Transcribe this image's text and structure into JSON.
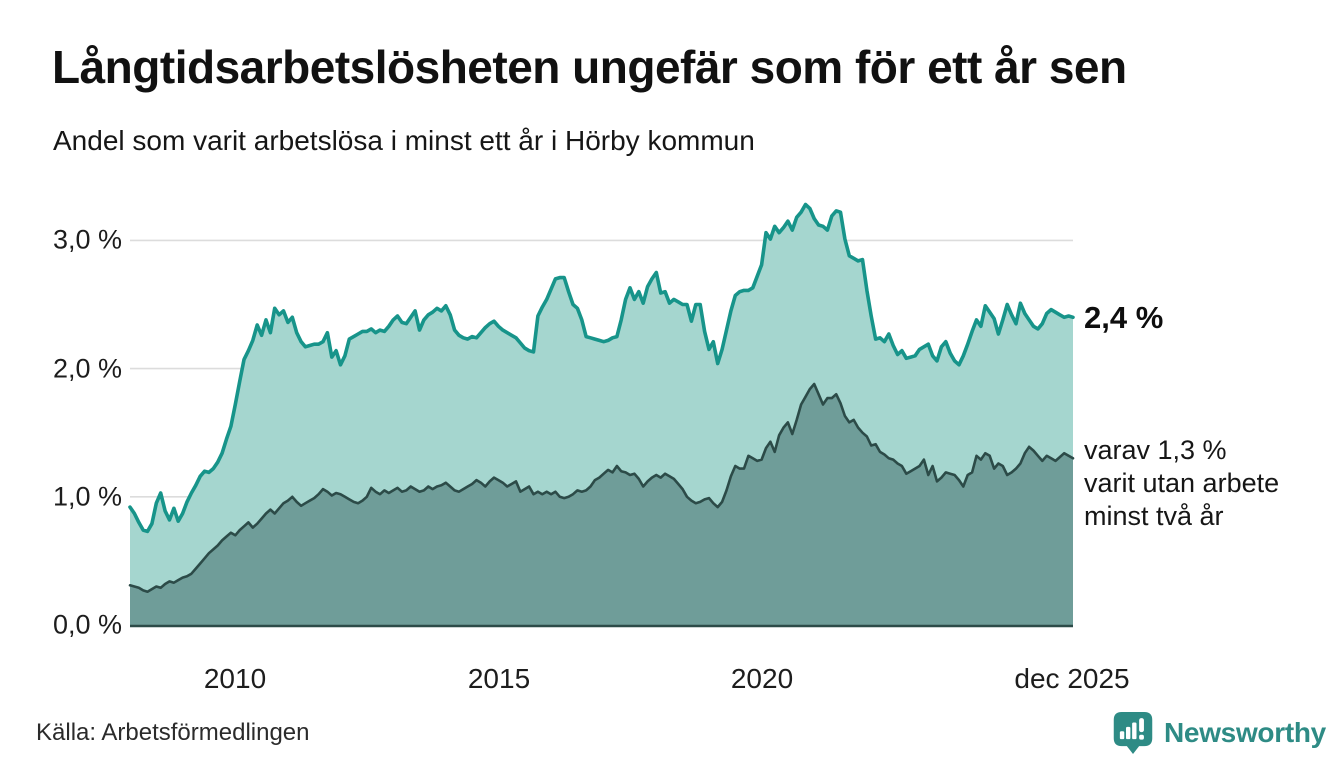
{
  "title": "Långtidsarbetslösheten ungefär som för ett år sen",
  "subtitle": "Andel som varit arbetslösa i minst ett år i Hörby kommun",
  "source": "Källa: Arbetsförmedlingen",
  "branding": {
    "name": "Newsworthy",
    "icon": "newsworthy-bubble-chart-icon",
    "color": "#2E8B85"
  },
  "annotations": {
    "series1_value_label": "2,4 %",
    "series2_value_lines": [
      "varav 1,3 %",
      "varit utan arbete",
      "minst två år"
    ]
  },
  "axes": {
    "y_tick_labels": [
      "3,0 %",
      "2,0 %",
      "1,0 %",
      "0,0 %"
    ],
    "x_tick_labels": [
      "2010",
      "2015",
      "2020",
      "dec 2025"
    ]
  },
  "chart_data": {
    "type": "area",
    "stacked": false,
    "x_unit": "month",
    "x_range": [
      "2008-01",
      "2025-12"
    ],
    "x_tick_labels": [
      "2010",
      "2015",
      "2020",
      "dec 2025"
    ],
    "y_tick_values": [
      0.0,
      1.0,
      2.0,
      3.0
    ],
    "ylim": [
      0,
      3.4
    ],
    "grid": true,
    "grid_color": "#dcdcdc",
    "series": [
      {
        "name": "Andel arbetslösa minst ett år",
        "end_value_pct": 2.4,
        "color": "#17948A",
        "fill": "#A5D6CF",
        "values": [
          0.92,
          0.87,
          0.8,
          0.74,
          0.73,
          0.79,
          0.95,
          1.03,
          0.89,
          0.82,
          0.91,
          0.81,
          0.87,
          0.96,
          1.03,
          1.09,
          1.16,
          1.2,
          1.19,
          1.22,
          1.27,
          1.34,
          1.45,
          1.55,
          1.72,
          1.9,
          2.07,
          2.14,
          2.22,
          2.34,
          2.26,
          2.38,
          2.28,
          2.47,
          2.42,
          2.45,
          2.36,
          2.4,
          2.28,
          2.21,
          2.17,
          2.18,
          2.19,
          2.19,
          2.21,
          2.28,
          2.09,
          2.14,
          2.03,
          2.1,
          2.23,
          2.25,
          2.27,
          2.29,
          2.29,
          2.31,
          2.28,
          2.3,
          2.29,
          2.33,
          2.38,
          2.41,
          2.36,
          2.35,
          2.4,
          2.45,
          2.3,
          2.38,
          2.42,
          2.44,
          2.47,
          2.45,
          2.49,
          2.42,
          2.3,
          2.26,
          2.24,
          2.23,
          2.25,
          2.24,
          2.28,
          2.32,
          2.35,
          2.37,
          2.33,
          2.3,
          2.28,
          2.26,
          2.24,
          2.2,
          2.16,
          2.14,
          2.13,
          2.41,
          2.48,
          2.54,
          2.62,
          2.7,
          2.71,
          2.71,
          2.6,
          2.5,
          2.47,
          2.38,
          2.25,
          2.24,
          2.23,
          2.22,
          2.21,
          2.22,
          2.24,
          2.25,
          2.38,
          2.54,
          2.63,
          2.54,
          2.6,
          2.51,
          2.64,
          2.7,
          2.75,
          2.59,
          2.6,
          2.51,
          2.54,
          2.52,
          2.5,
          2.5,
          2.37,
          2.5,
          2.5,
          2.29,
          2.15,
          2.21,
          2.04,
          2.15,
          2.3,
          2.45,
          2.57,
          2.6,
          2.61,
          2.61,
          2.63,
          2.72,
          2.81,
          3.06,
          3.01,
          3.11,
          3.06,
          3.1,
          3.15,
          3.08,
          3.18,
          3.22,
          3.28,
          3.25,
          3.17,
          3.12,
          3.11,
          3.08,
          3.19,
          3.23,
          3.22,
          3.01,
          2.88,
          2.86,
          2.84,
          2.85,
          2.61,
          2.41,
          2.23,
          2.24,
          2.21,
          2.27,
          2.18,
          2.11,
          2.14,
          2.08,
          2.09,
          2.1,
          2.15,
          2.17,
          2.19,
          2.1,
          2.06,
          2.17,
          2.21,
          2.12,
          2.06,
          2.03,
          2.1,
          2.19,
          2.29,
          2.38,
          2.33,
          2.49,
          2.44,
          2.39,
          2.27,
          2.38,
          2.5,
          2.42,
          2.35,
          2.51,
          2.43,
          2.38,
          2.33,
          2.31,
          2.35,
          2.43,
          2.46,
          2.44,
          2.42,
          2.4,
          2.41,
          2.4
        ]
      },
      {
        "name": "Andel utan arbete minst två år",
        "end_value_pct": 1.3,
        "color": "#2C4B48",
        "fill": "#6F9D99",
        "values": [
          0.31,
          0.3,
          0.29,
          0.27,
          0.26,
          0.28,
          0.3,
          0.29,
          0.32,
          0.34,
          0.33,
          0.35,
          0.37,
          0.38,
          0.4,
          0.44,
          0.48,
          0.52,
          0.56,
          0.59,
          0.62,
          0.66,
          0.69,
          0.72,
          0.7,
          0.74,
          0.77,
          0.8,
          0.76,
          0.79,
          0.83,
          0.87,
          0.9,
          0.87,
          0.91,
          0.95,
          0.97,
          1.0,
          0.96,
          0.93,
          0.95,
          0.97,
          0.99,
          1.02,
          1.06,
          1.04,
          1.01,
          1.03,
          1.02,
          1.0,
          0.98,
          0.96,
          0.95,
          0.97,
          1.0,
          1.07,
          1.04,
          1.02,
          1.05,
          1.03,
          1.05,
          1.07,
          1.04,
          1.05,
          1.08,
          1.06,
          1.04,
          1.05,
          1.08,
          1.06,
          1.08,
          1.09,
          1.11,
          1.08,
          1.05,
          1.04,
          1.06,
          1.08,
          1.1,
          1.13,
          1.11,
          1.08,
          1.12,
          1.15,
          1.13,
          1.11,
          1.08,
          1.1,
          1.12,
          1.04,
          1.06,
          1.08,
          1.02,
          1.04,
          1.02,
          1.04,
          1.02,
          1.04,
          1.0,
          0.99,
          1.0,
          1.02,
          1.05,
          1.04,
          1.05,
          1.08,
          1.13,
          1.15,
          1.18,
          1.21,
          1.19,
          1.24,
          1.2,
          1.19,
          1.17,
          1.18,
          1.14,
          1.08,
          1.12,
          1.15,
          1.17,
          1.15,
          1.18,
          1.16,
          1.14,
          1.1,
          1.06,
          1.0,
          0.97,
          0.95,
          0.96,
          0.98,
          0.99,
          0.95,
          0.92,
          0.96,
          1.05,
          1.16,
          1.24,
          1.22,
          1.22,
          1.32,
          1.3,
          1.28,
          1.29,
          1.38,
          1.43,
          1.35,
          1.48,
          1.54,
          1.58,
          1.49,
          1.6,
          1.72,
          1.78,
          1.84,
          1.88,
          1.8,
          1.72,
          1.77,
          1.77,
          1.8,
          1.73,
          1.63,
          1.58,
          1.6,
          1.54,
          1.5,
          1.47,
          1.4,
          1.41,
          1.35,
          1.33,
          1.3,
          1.29,
          1.26,
          1.24,
          1.18,
          1.2,
          1.22,
          1.24,
          1.29,
          1.17,
          1.24,
          1.12,
          1.15,
          1.19,
          1.18,
          1.17,
          1.13,
          1.08,
          1.17,
          1.19,
          1.32,
          1.29,
          1.34,
          1.32,
          1.22,
          1.26,
          1.24,
          1.17,
          1.19,
          1.22,
          1.26,
          1.34,
          1.39,
          1.36,
          1.32,
          1.28,
          1.32,
          1.3,
          1.28,
          1.31,
          1.34,
          1.32,
          1.3
        ]
      }
    ]
  }
}
